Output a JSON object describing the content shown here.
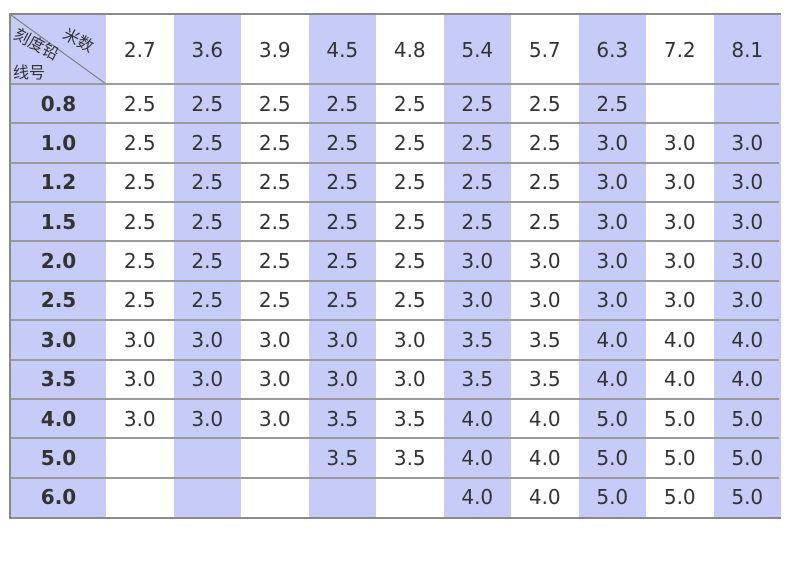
{
  "corner": {
    "top": "米数",
    "left": "刻度铅",
    "bottom": "线号"
  },
  "columns": [
    "2.7",
    "3.6",
    "3.9",
    "4.5",
    "4.8",
    "5.4",
    "5.7",
    "6.3",
    "7.2",
    "8.1"
  ],
  "rows": [
    {
      "label": "0.8",
      "cells": [
        "2.5",
        "2.5",
        "2.5",
        "2.5",
        "2.5",
        "2.5",
        "2.5",
        "2.5",
        null,
        null
      ]
    },
    {
      "label": "1.0",
      "cells": [
        "2.5",
        "2.5",
        "2.5",
        "2.5",
        "2.5",
        "2.5",
        "2.5",
        "3.0",
        "3.0",
        "3.0"
      ]
    },
    {
      "label": "1.2",
      "cells": [
        "2.5",
        "2.5",
        "2.5",
        "2.5",
        "2.5",
        "2.5",
        "2.5",
        "3.0",
        "3.0",
        "3.0"
      ]
    },
    {
      "label": "1.5",
      "cells": [
        "2.5",
        "2.5",
        "2.5",
        "2.5",
        "2.5",
        "2.5",
        "2.5",
        "3.0",
        "3.0",
        "3.0"
      ]
    },
    {
      "label": "2.0",
      "cells": [
        "2.5",
        "2.5",
        "2.5",
        "2.5",
        "2.5",
        "3.0",
        "3.0",
        "3.0",
        "3.0",
        "3.0"
      ]
    },
    {
      "label": "2.5",
      "cells": [
        "2.5",
        "2.5",
        "2.5",
        "2.5",
        "2.5",
        "3.0",
        "3.0",
        "3.0",
        "3.0",
        "3.0"
      ]
    },
    {
      "label": "3.0",
      "cells": [
        "3.0",
        "3.0",
        "3.0",
        "3.0",
        "3.0",
        "3.5",
        "3.5",
        "4.0",
        "4.0",
        "4.0"
      ]
    },
    {
      "label": "3.5",
      "cells": [
        "3.0",
        "3.0",
        "3.0",
        "3.0",
        "3.0",
        "3.5",
        "3.5",
        "4.0",
        "4.0",
        "4.0"
      ]
    },
    {
      "label": "4.0",
      "cells": [
        "3.0",
        "3.0",
        "3.0",
        "3.5",
        "3.5",
        "4.0",
        "4.0",
        "5.0",
        "5.0",
        "5.0"
      ]
    },
    {
      "label": "5.0",
      "cells": [
        null,
        null,
        null,
        "3.5",
        "3.5",
        "4.0",
        "4.0",
        "5.0",
        "5.0",
        "5.0"
      ]
    },
    {
      "label": "6.0",
      "cells": [
        null,
        null,
        null,
        null,
        null,
        "4.0",
        "4.0",
        "5.0",
        "5.0",
        "5.0"
      ]
    }
  ]
}
